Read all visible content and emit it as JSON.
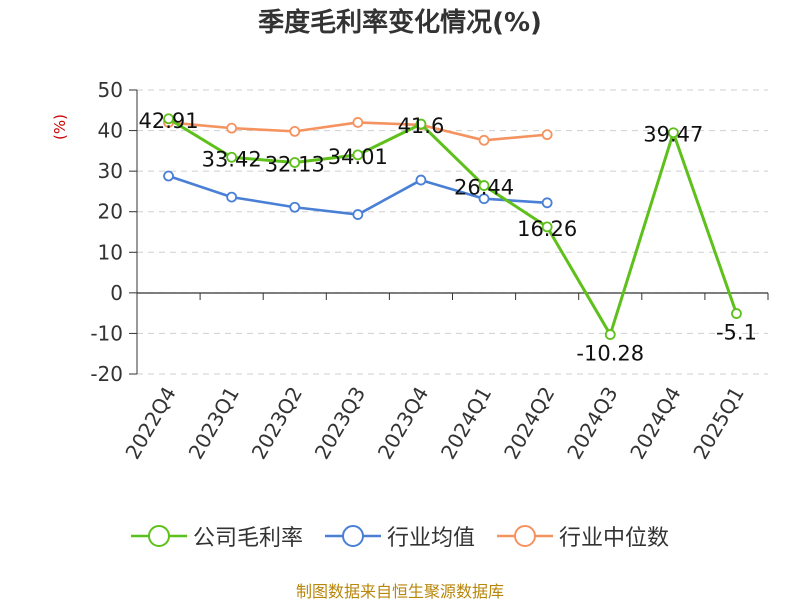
{
  "chart_data": {
    "type": "line",
    "title": "季度毛利率变化情况(%)",
    "ylabel": "(%)",
    "xlabel": "",
    "ylim": [
      -20,
      50
    ],
    "yticks": [
      50,
      40,
      30,
      20,
      10,
      0,
      -10,
      -20
    ],
    "grid": true,
    "legend_position": "bottom",
    "categories": [
      "2022Q4",
      "2023Q1",
      "2023Q2",
      "2023Q3",
      "2023Q4",
      "2024Q1",
      "2024Q2",
      "2024Q3",
      "2024Q4",
      "2025Q1"
    ],
    "series": [
      {
        "name": "公司毛利率",
        "color": "#5ec01a",
        "values": [
          42.91,
          33.42,
          32.13,
          34.01,
          41.6,
          26.44,
          16.26,
          -10.28,
          39.47,
          -5.1
        ],
        "labels": [
          "42.91",
          "33.42",
          "32.13",
          "34.01",
          "41.6",
          "26.44",
          "16.26",
          "-10.28",
          "39.47",
          "-5.1"
        ]
      },
      {
        "name": "行业均值",
        "color": "#4a7fd6",
        "values": [
          28.8,
          23.6,
          21.1,
          19.3,
          27.8,
          23.2,
          22.2,
          null,
          null,
          null
        ]
      },
      {
        "name": "行业中位数",
        "color": "#f59360",
        "values": [
          42.0,
          40.6,
          39.8,
          42.0,
          41.4,
          37.6,
          39.0,
          null,
          null,
          null
        ]
      }
    ]
  },
  "footer": {
    "source": "制图数据来自恒生聚源数据库"
  }
}
